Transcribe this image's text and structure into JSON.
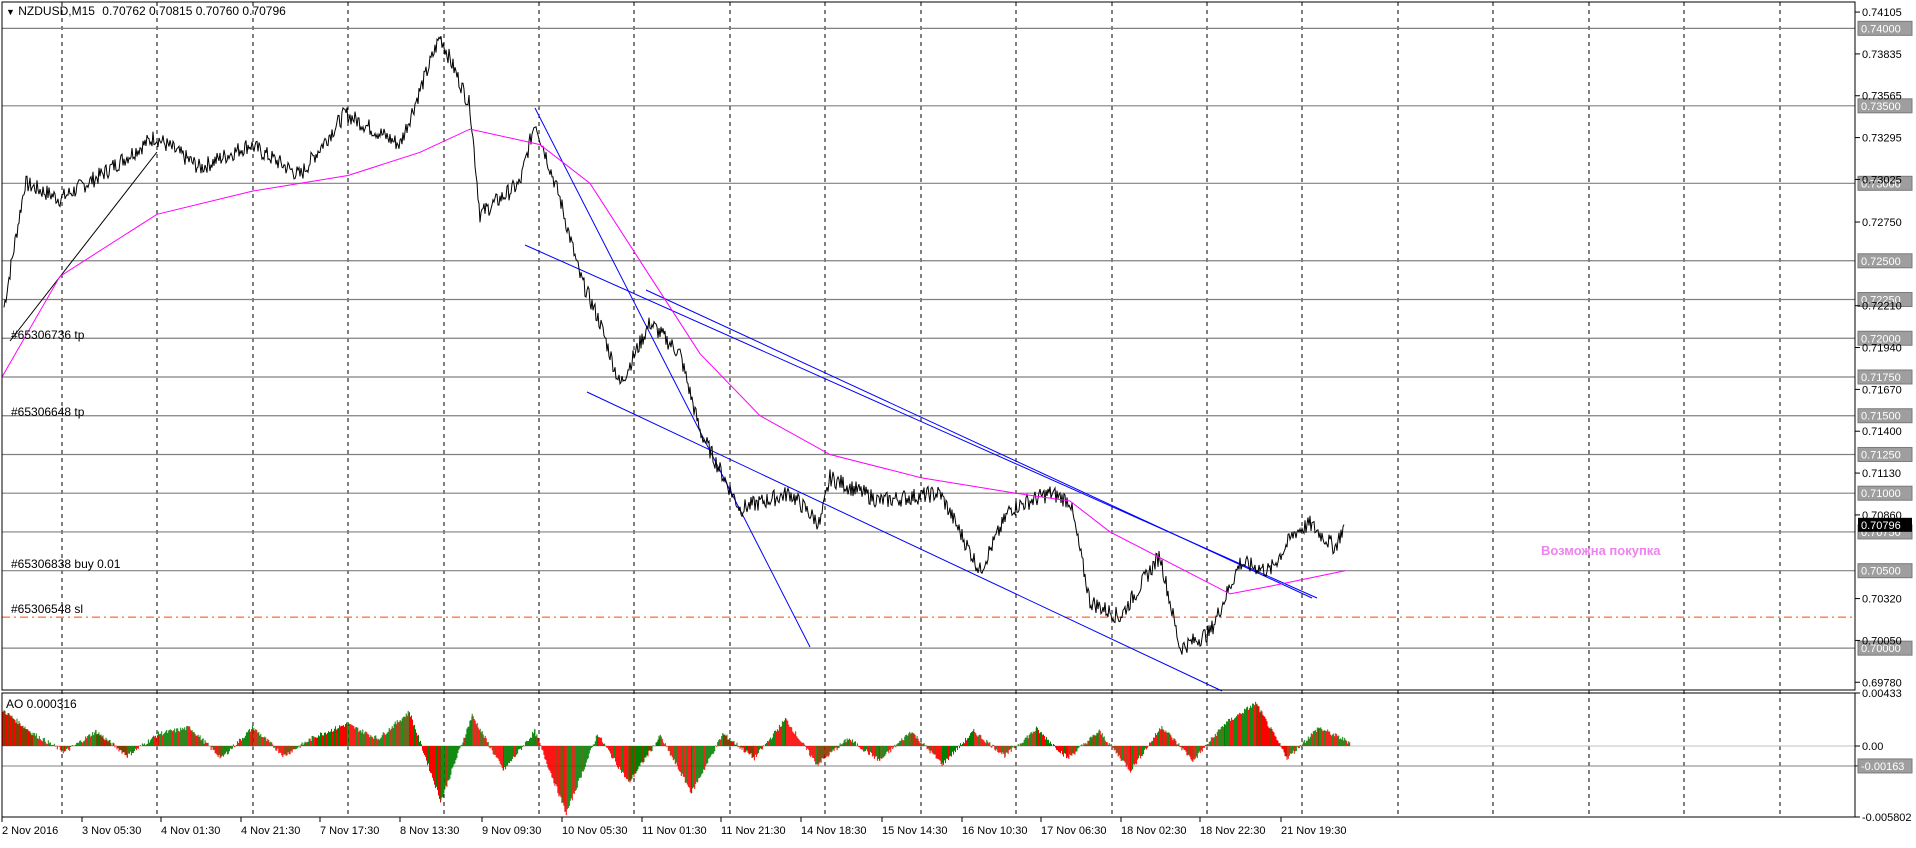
{
  "header": {
    "symbol_label": "NZDUSD,M15",
    "ohlc": "0.70762 0.70815 0.70760 0.70796"
  },
  "colors": {
    "price": "#000000",
    "ma": "#ff00ff",
    "channel": "#0000ff",
    "hline": "#808080",
    "sl_line": "#ff4500",
    "ao_up": "#008000",
    "ao_down": "#ff0000",
    "annotation": "#ee82ee"
  },
  "annotation_text": "Возможна покупка",
  "order_labels": [
    {
      "text": "#65306736 tp"
    },
    {
      "text": "#65306648 tp"
    },
    {
      "text": "#65306838 buy 0.01"
    },
    {
      "text": "#65306548 sl"
    }
  ],
  "indicator": {
    "label": "AO 0.000316",
    "scale_labels": [
      "0.00433",
      "0.00",
      "-0.00163",
      "-0.005802"
    ]
  },
  "price_labels": [
    "0.74105",
    "0.73835",
    "0.73565",
    "0.73295",
    "0.73025",
    "0.72750",
    "0.72210",
    "0.71940",
    "0.71670",
    "0.71400",
    "0.71130",
    "0.70860",
    "0.70320",
    "0.70050",
    "0.69780"
  ],
  "level_labels": [
    "0.74000",
    "0.73500",
    "0.73000",
    "0.72500",
    "0.72250",
    "0.72000",
    "0.71750",
    "0.71500",
    "0.71250",
    "0.71000",
    "0.70750",
    "0.70500",
    "0.70000"
  ],
  "current_price_label": "0.70796",
  "time_labels": [
    "2 Nov 2016",
    "3 Nov 05:30",
    "4 Nov 01:30",
    "4 Nov 21:30",
    "7 Nov 17:30",
    "8 Nov 13:30",
    "9 Nov 09:30",
    "10 Nov 05:30",
    "11 Nov 01:30",
    "11 Nov 21:30",
    "14 Nov 18:30",
    "15 Nov 14:30",
    "16 Nov 10:30",
    "17 Nov 06:30",
    "18 Nov 02:30",
    "18 Nov 22:30",
    "21 Nov 19:30"
  ],
  "chart_data": {
    "type": "line",
    "title": "NZDUSD,M15",
    "ylim": [
      0.6973,
      0.7417
    ],
    "x": [
      "2 Nov 2016",
      "3 Nov 05:30",
      "4 Nov 01:30",
      "4 Nov 21:30",
      "7 Nov 17:30",
      "8 Nov 13:30",
      "9 Nov 09:30",
      "10 Nov 05:30",
      "11 Nov 01:30",
      "11 Nov 21:30",
      "14 Nov 18:30",
      "15 Nov 14:30",
      "16 Nov 10:30",
      "17 Nov 06:30",
      "18 Nov 02:30",
      "18 Nov 22:30",
      "21 Nov 19:30"
    ],
    "series": [
      {
        "name": "NZDUSD,M15",
        "values": [
          0.722,
          0.7295,
          0.733,
          0.7315,
          0.7335,
          0.7395,
          0.73,
          0.72,
          0.718,
          0.7085,
          0.7105,
          0.708,
          0.7045,
          0.71,
          0.702,
          0.702,
          0.708
        ]
      }
    ],
    "ma_values": [
      0.7175,
      0.7255,
      0.729,
      0.73,
      0.732,
      0.7335,
      0.733,
      0.729,
      0.723,
      0.716,
      0.713,
      0.711,
      0.71,
      0.71,
      0.707,
      0.704,
      0.705
    ],
    "horizontal_levels": [
      0.74,
      0.735,
      0.73,
      0.725,
      0.7225,
      0.72,
      0.7175,
      0.715,
      0.7125,
      0.71,
      0.7075,
      0.705,
      0.7
    ],
    "stop_level": 0.702,
    "ao_ylim": [
      -0.005802,
      0.00433
    ],
    "ao_values": [
      0.003,
      0.001,
      -0.0005,
      0.0012,
      -0.0008,
      0.001,
      0.0015,
      -0.001,
      0.0015,
      -0.0008,
      0.0008,
      0.0018,
      0.0006,
      0.0028,
      -0.0045,
      0.0025,
      -0.002,
      0.0012,
      -0.0055,
      0.001,
      -0.003,
      0.0008,
      -0.0038,
      0.001,
      -0.001,
      0.0022,
      -0.0015,
      0.0006,
      -0.0012,
      0.0012,
      -0.0015,
      0.0012,
      -0.0008,
      0.0014,
      -0.001,
      0.0012,
      -0.002,
      0.0016,
      -0.0012,
      0.0018,
      0.0035,
      -0.001,
      0.0015,
      0.0003
    ]
  }
}
